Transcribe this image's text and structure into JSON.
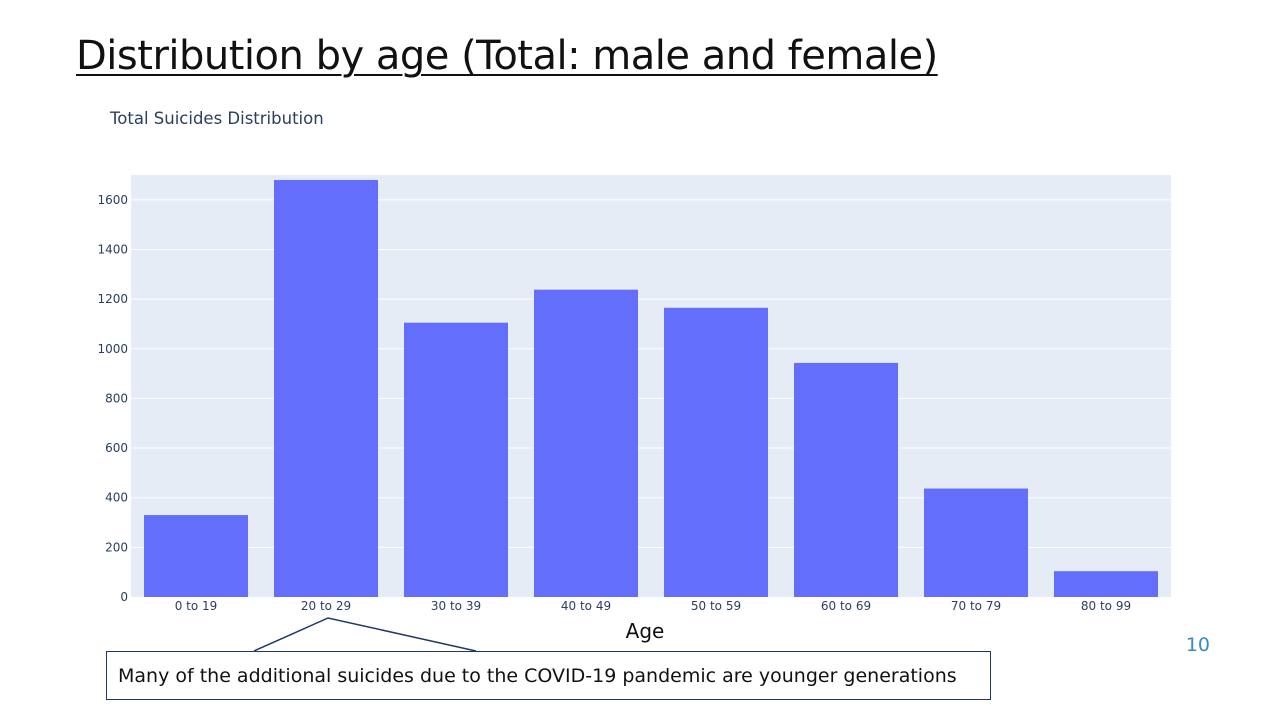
{
  "slide": {
    "title": "Distribution by age (Total: male and female)",
    "page_number": "10",
    "callout_text": "Many of the additional suicides due to the COVID-19 pandemic are younger generations"
  },
  "colors": {
    "bar": "#636efa",
    "plot_background": "#e5ecf6",
    "gridline": "#ffffff",
    "tick_text": "#2a3f5f",
    "callout_border": "#1f3864",
    "page_number": "#3a8bc0"
  },
  "chart_data": {
    "type": "bar",
    "title": "Total Suicides Distribution",
    "xlabel": "Age",
    "ylabel": "",
    "categories": [
      "0 to 19",
      "20 to 29",
      "30 to 39",
      "40 to 49",
      "50 to 59",
      "60 to 69",
      "70 to 79",
      "80 to 99"
    ],
    "values": [
      330,
      1680,
      1105,
      1238,
      1165,
      943,
      437,
      104
    ],
    "ylim": [
      0,
      1700
    ],
    "yticks": [
      0,
      200,
      400,
      600,
      800,
      1000,
      1200,
      1400,
      1600
    ],
    "grid": true,
    "legend": "none",
    "annotation": {
      "text": "Many of the additional suicides due to the COVID-19 pandemic are younger generations",
      "target_category": "20 to 29"
    }
  }
}
